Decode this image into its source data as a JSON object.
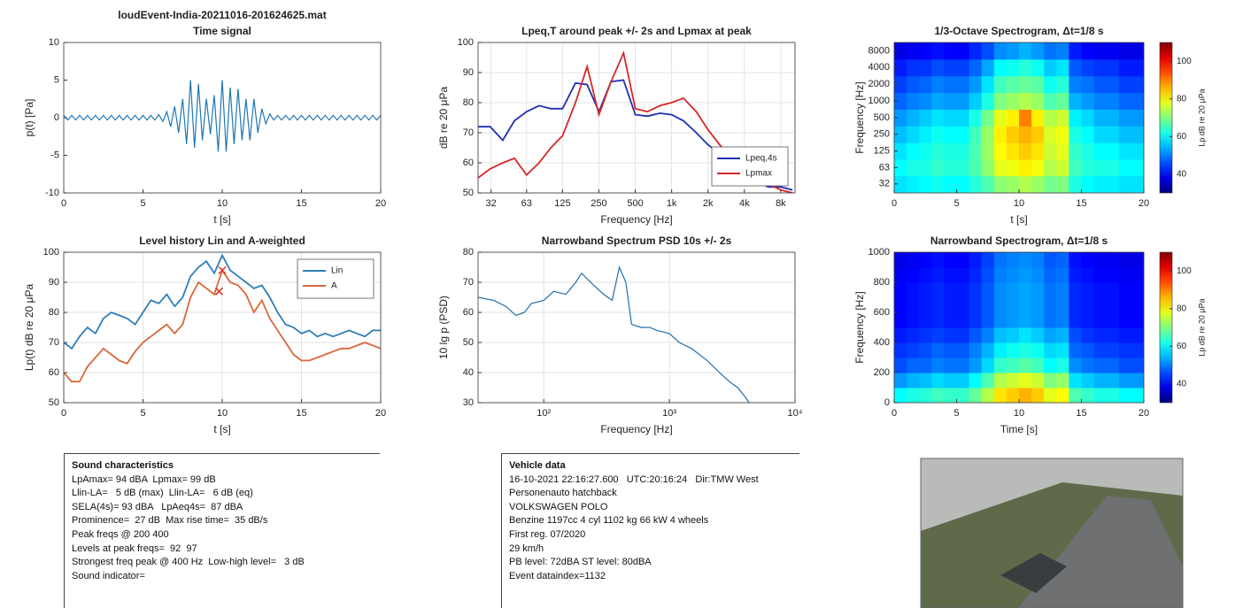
{
  "chart_data": [
    {
      "type": "line",
      "filename": "loudEvent-India-20211016-201624625.mat",
      "title": "Time signal",
      "xlabel": "t [s]",
      "ylabel": "p(t) [Pa]",
      "xlim": [
        0,
        20
      ],
      "xticks": [
        0,
        5,
        10,
        15,
        20
      ],
      "ylim": [
        -10,
        10
      ],
      "yticks": [
        -10,
        -5,
        0,
        5,
        10
      ],
      "grid": false,
      "x": [
        0,
        0.25,
        0.5,
        0.75,
        1,
        1.25,
        1.5,
        1.75,
        2,
        2.25,
        2.5,
        2.75,
        3,
        3.25,
        3.5,
        3.75,
        4,
        4.25,
        4.5,
        4.75,
        5,
        5.25,
        5.5,
        5.75,
        6,
        6.25,
        6.5,
        6.75,
        7,
        7.25,
        7.5,
        7.75,
        8,
        8.25,
        8.5,
        8.75,
        9,
        9.25,
        9.5,
        9.75,
        10,
        10.25,
        10.5,
        10.75,
        11,
        11.25,
        11.5,
        11.75,
        12,
        12.25,
        12.5,
        12.75,
        13,
        13.25,
        13.5,
        13.75,
        14,
        14.25,
        14.5,
        14.75,
        15,
        15.25,
        15.5,
        15.75,
        16,
        16.25,
        16.5,
        16.75,
        17,
        17.25,
        17.5,
        17.75,
        18,
        18.25,
        18.5,
        18.75,
        19,
        19.25,
        19.5,
        19.75,
        20
      ],
      "series": [
        {
          "color": "#1f77b4",
          "values": [
            0.3,
            -0.3,
            0.3,
            -0.3,
            0.3,
            -0.3,
            0.3,
            -0.3,
            0.3,
            -0.3,
            0.3,
            -0.3,
            0.3,
            -0.3,
            0.3,
            -0.3,
            0.3,
            -0.3,
            0.3,
            -0.3,
            0.3,
            -0.3,
            0.3,
            -0.3,
            0.4,
            -0.5,
            0.8,
            -1.2,
            1.5,
            -2,
            2.5,
            -3.5,
            5,
            -4,
            4.5,
            -3,
            2.5,
            -2.2,
            3,
            -4.5,
            5,
            -4.5,
            4,
            -3.5,
            3.8,
            -3,
            2.5,
            -3,
            2.5,
            -2,
            1.2,
            -0.8,
            0.5,
            -0.3,
            0.3,
            -0.3,
            0.3,
            -0.3,
            0.3,
            -0.3,
            0.3,
            -0.3,
            0.3,
            -0.3,
            0.3,
            -0.3,
            0.3,
            -0.3,
            0.3,
            -0.3,
            0.3,
            -0.3,
            0.3,
            -0.3,
            0.3,
            -0.3,
            0.3,
            -0.3,
            0.3,
            -0.3,
            0.3
          ]
        }
      ]
    },
    {
      "type": "line",
      "title": "Lpeq,T around peak +/- 2s and Lpmax at peak",
      "xlabel": "Frequency [Hz]",
      "ylabel": "dB re 20 μPa",
      "xlog": true,
      "xlim": [
        25,
        10500
      ],
      "xticks": [
        32,
        63,
        125,
        250,
        500,
        {
          "value": 1000,
          "label": "1k"
        },
        {
          "value": 2000,
          "label": "2k"
        },
        {
          "value": 4000,
          "label": "4k"
        },
        {
          "value": 8000,
          "label": "8k"
        }
      ],
      "ylim": [
        50,
        100
      ],
      "yticks": [
        50,
        60,
        70,
        80,
        90,
        100
      ],
      "grid": true,
      "legend": "lower right",
      "x": [
        25,
        31.5,
        40,
        50,
        63,
        80,
        100,
        125,
        160,
        200,
        250,
        315,
        400,
        500,
        630,
        800,
        1000,
        1250,
        1600,
        2000,
        2500,
        3150,
        4000,
        5000,
        6300,
        8000,
        10000
      ],
      "series": [
        {
          "name": "Lpeq,4s",
          "color": "#1f2fb4",
          "values": [
            72,
            72,
            67.5,
            74,
            77,
            79,
            78,
            78,
            86.5,
            86,
            77,
            87,
            87.5,
            76,
            75.5,
            76.5,
            76,
            74,
            70,
            66,
            63,
            60,
            57,
            54,
            52,
            52,
            51
          ]
        },
        {
          "name": "Lpmax",
          "color": "#d62728",
          "values": [
            55,
            58,
            60,
            61.5,
            56,
            60,
            65,
            69,
            80,
            92,
            76,
            87,
            96.5,
            78,
            77,
            79,
            80,
            81.5,
            77,
            71,
            66,
            62,
            58,
            55,
            53,
            51,
            50
          ]
        }
      ]
    },
    {
      "type": "heatmap",
      "title": "1/3-Octave Spectrogram, Δt=1/8 s",
      "xlabel": "t [s]",
      "ylabel": "Frequency [Hz]",
      "clabel": "Lp dB re 20 μPa",
      "xlim": [
        0,
        20
      ],
      "xticks": [
        0,
        5,
        10,
        15,
        20
      ],
      "ylog": true,
      "ylim": [
        22,
        11300
      ],
      "yticks": [
        32,
        63,
        125,
        250,
        500,
        1000,
        2000,
        4000,
        8000
      ],
      "clim": [
        30,
        110
      ],
      "cticks": [
        40,
        60,
        80,
        100
      ],
      "x": [
        0.5,
        1.5,
        2.5,
        3.5,
        4.5,
        5.5,
        6.5,
        7.5,
        8.5,
        9.5,
        10.5,
        11.5,
        12.5,
        13.5,
        14.5,
        15.5,
        16.5,
        17.5,
        18.5,
        19.5
      ],
      "y": [
        32,
        63,
        125,
        250,
        500,
        1000,
        2000,
        4000,
        8000
      ],
      "z": [
        [
          58,
          59,
          60,
          61,
          60,
          60,
          63,
          66,
          71,
          72,
          74,
          72,
          69,
          70,
          62,
          60,
          59,
          59,
          58,
          58
        ],
        [
          60,
          62,
          62,
          64,
          63,
          63,
          66,
          71,
          78,
          79,
          81,
          79,
          74,
          76,
          65,
          63,
          62,
          62,
          60,
          60
        ],
        [
          58,
          60,
          61,
          63,
          62,
          62,
          66,
          72,
          80,
          82,
          84,
          82,
          76,
          78,
          64,
          62,
          60,
          60,
          58,
          58
        ],
        [
          55,
          57,
          59,
          61,
          60,
          60,
          65,
          72,
          81,
          84,
          86,
          84,
          77,
          79,
          62,
          60,
          57,
          57,
          55,
          55
        ],
        [
          52,
          54,
          56,
          58,
          57,
          57,
          62,
          69,
          78,
          81,
          90,
          81,
          74,
          76,
          59,
          57,
          54,
          54,
          52,
          52
        ],
        [
          48,
          50,
          51,
          53,
          52,
          52,
          56,
          62,
          70,
          72,
          74,
          72,
          66,
          68,
          54,
          52,
          50,
          50,
          48,
          48
        ],
        [
          45,
          47,
          48,
          50,
          49,
          49,
          52,
          58,
          65,
          67,
          68,
          67,
          61,
          63,
          50,
          49,
          47,
          47,
          45,
          45
        ],
        [
          42,
          44,
          44,
          46,
          45,
          45,
          48,
          53,
          60,
          61,
          63,
          61,
          56,
          58,
          47,
          45,
          44,
          44,
          42,
          42
        ],
        [
          38,
          39,
          40,
          41,
          40,
          40,
          43,
          46,
          51,
          52,
          54,
          52,
          49,
          50,
          42,
          40,
          39,
          39,
          38,
          38
        ]
      ]
    },
    {
      "type": "line",
      "title": "Level history Lin and A-weighted",
      "xlabel": "t [s]",
      "ylabel": "Lp(t) dB re 20 μPa",
      "xlim": [
        0,
        20
      ],
      "xticks": [
        0,
        5,
        10,
        15,
        20
      ],
      "ylim": [
        50,
        100
      ],
      "yticks": [
        50,
        60,
        70,
        80,
        90,
        100
      ],
      "grid": true,
      "legend": "upper right",
      "x": [
        0,
        0.5,
        1,
        1.5,
        2,
        2.5,
        3,
        3.5,
        4,
        4.5,
        5,
        5.5,
        6,
        6.5,
        7,
        7.5,
        8,
        8.5,
        9,
        9.5,
        10,
        10.5,
        11,
        11.5,
        12,
        12.5,
        13,
        13.5,
        14,
        14.5,
        15,
        15.5,
        16,
        16.5,
        17,
        17.5,
        18,
        18.5,
        19,
        19.5,
        20
      ],
      "series": [
        {
          "name": "Lin",
          "color": "#2f7fb8",
          "values": [
            70,
            68,
            72,
            75,
            73,
            78,
            80,
            79,
            78,
            76,
            80,
            84,
            83,
            86,
            82,
            85,
            92,
            95,
            97,
            93,
            99,
            94,
            92,
            90,
            88,
            89,
            85,
            80,
            76,
            75,
            73,
            74,
            72,
            73,
            72,
            73,
            74,
            73,
            72,
            74,
            74
          ]
        },
        {
          "name": "A",
          "color": "#d9673a",
          "values": [
            60,
            57,
            57,
            62,
            65,
            68,
            66,
            64,
            63,
            67,
            70,
            72,
            74,
            76,
            73,
            76,
            85,
            90,
            88,
            86,
            94,
            90,
            89,
            86,
            80,
            84,
            78,
            74,
            70,
            66,
            64,
            64,
            65,
            66,
            67,
            68,
            68,
            69,
            70,
            69,
            68
          ]
        }
      ],
      "markers": {
        "color": "#e03020",
        "x": [
          10,
          9.8
        ],
        "values": [
          94,
          87
        ]
      }
    },
    {
      "type": "line",
      "title": "Narrowband Spectrum PSD 10s +/- 2s",
      "xlabel": "Frequency [Hz]",
      "ylabel": "10 lg p (PSD)",
      "xlog": true,
      "xlim": [
        30,
        10000
      ],
      "xticks": [
        {
          "value": 100,
          "label": "10²"
        },
        {
          "value": 1000,
          "label": "10³"
        },
        {
          "value": 10000,
          "label": "10⁴"
        }
      ],
      "ylim": [
        30,
        80
      ],
      "yticks": [
        30,
        40,
        50,
        60,
        70,
        80
      ],
      "grid": true,
      "x": [
        30,
        40,
        50,
        60,
        70,
        80,
        100,
        120,
        150,
        180,
        200,
        250,
        300,
        350,
        400,
        450,
        500,
        600,
        700,
        800,
        1000,
        1200,
        1500,
        2000,
        2500,
        3000,
        3500,
        4000,
        4300
      ],
      "series": [
        {
          "color": "#1f6fae",
          "values": [
            65,
            64,
            62,
            59,
            60,
            63,
            64,
            67,
            66,
            70,
            73,
            69,
            66,
            64,
            75,
            70,
            56,
            55,
            55,
            54,
            53,
            50,
            48,
            44,
            40,
            37,
            35,
            32,
            30
          ]
        }
      ]
    },
    {
      "type": "heatmap",
      "title": "Narrowband Spectrogram, Δt=1/8 s",
      "xlabel": "Time [s]",
      "ylabel": "Frequency [Hz]",
      "clabel": "Lp dB re 20 μPa",
      "xlim": [
        0,
        20
      ],
      "xticks": [
        0,
        5,
        10,
        15,
        20
      ],
      "ylim": [
        0,
        1000
      ],
      "yticks": [
        0,
        200,
        400,
        600,
        800,
        1000
      ],
      "clim": [
        30,
        110
      ],
      "cticks": [
        40,
        60,
        80,
        100
      ],
      "x": [
        0.5,
        1.5,
        2.5,
        3.5,
        4.5,
        5.5,
        6.5,
        7.5,
        8.5,
        9.5,
        10.5,
        11.5,
        12.5,
        13.5,
        14.5,
        15.5,
        16.5,
        17.5,
        18.5,
        19.5
      ],
      "y": [
        50,
        150,
        250,
        350,
        450,
        550,
        650,
        750,
        850,
        950
      ],
      "z": [
        [
          60,
          62,
          63,
          65,
          64,
          64,
          68,
          74,
          82,
          84,
          86,
          84,
          78,
          80,
          66,
          64,
          62,
          62,
          60,
          60
        ],
        [
          52,
          54,
          55,
          57,
          56,
          56,
          60,
          66,
          74,
          76,
          78,
          76,
          70,
          72,
          58,
          56,
          54,
          54,
          52,
          52
        ],
        [
          46,
          48,
          48,
          50,
          49,
          49,
          52,
          57,
          64,
          65,
          67,
          65,
          60,
          62,
          51,
          49,
          48,
          48,
          46,
          46
        ],
        [
          44,
          45,
          46,
          48,
          47,
          47,
          50,
          54,
          59,
          61,
          62,
          61,
          57,
          58,
          48,
          47,
          45,
          45,
          44,
          44
        ],
        [
          42,
          43,
          44,
          45,
          44,
          44,
          47,
          50,
          55,
          56,
          58,
          56,
          53,
          54,
          46,
          44,
          43,
          43,
          42,
          42
        ],
        [
          40,
          41,
          42,
          43,
          42,
          42,
          44,
          47,
          51,
          52,
          53,
          52,
          49,
          50,
          43,
          42,
          41,
          41,
          40,
          40
        ],
        [
          40,
          41,
          42,
          43,
          42,
          42,
          44,
          47,
          51,
          52,
          53,
          52,
          49,
          50,
          43,
          42,
          41,
          41,
          40,
          40
        ],
        [
          40,
          41,
          42,
          43,
          42,
          42,
          44,
          47,
          51,
          52,
          53,
          52,
          49,
          50,
          43,
          42,
          41,
          41,
          40,
          40
        ],
        [
          39,
          40,
          41,
          42,
          41,
          41,
          43,
          46,
          50,
          51,
          52,
          51,
          48,
          49,
          42,
          41,
          40,
          40,
          39,
          39
        ],
        [
          38,
          39,
          40,
          41,
          40,
          40,
          42,
          45,
          49,
          50,
          51,
          50,
          47,
          48,
          41,
          40,
          39,
          39,
          38,
          38
        ]
      ]
    }
  ],
  "info_boxes": [
    {
      "title": "Sound characteristics",
      "lines": [
        "LpAmax= 94 dBA  Lpmax= 99 dB",
        "Llin-LA=   5 dB (max)  Llin-LA=   6 dB (eq)",
        "SELA(4s)= 93 dBA   LpAeq4s=  87 dBA",
        "Prominence=  27 dB  Max rise time=  35 dB/s",
        "Peak freqs @ 200 400",
        "Levels at peak freqs=  92  97",
        "Strongest freq peak @ 400 Hz  Low-high level=   3 dB",
        "Sound indicator="
      ]
    },
    {
      "title": "Vehicle data",
      "lines": [
        "16-10-2021 22:16:27.600   UTC:20:16:24   Dir:TMW West",
        "Personenauto hatchback",
        "VOLKSWAGEN POLO",
        "Benzine 1197cc 4 cyl 1102 kg 66 kW 4 wheels",
        "First reg. 07/2020",
        "29 km/h",
        "PB level: 72dBA ST level: 80dBA",
        "Event dataindex=1132"
      ]
    }
  ]
}
